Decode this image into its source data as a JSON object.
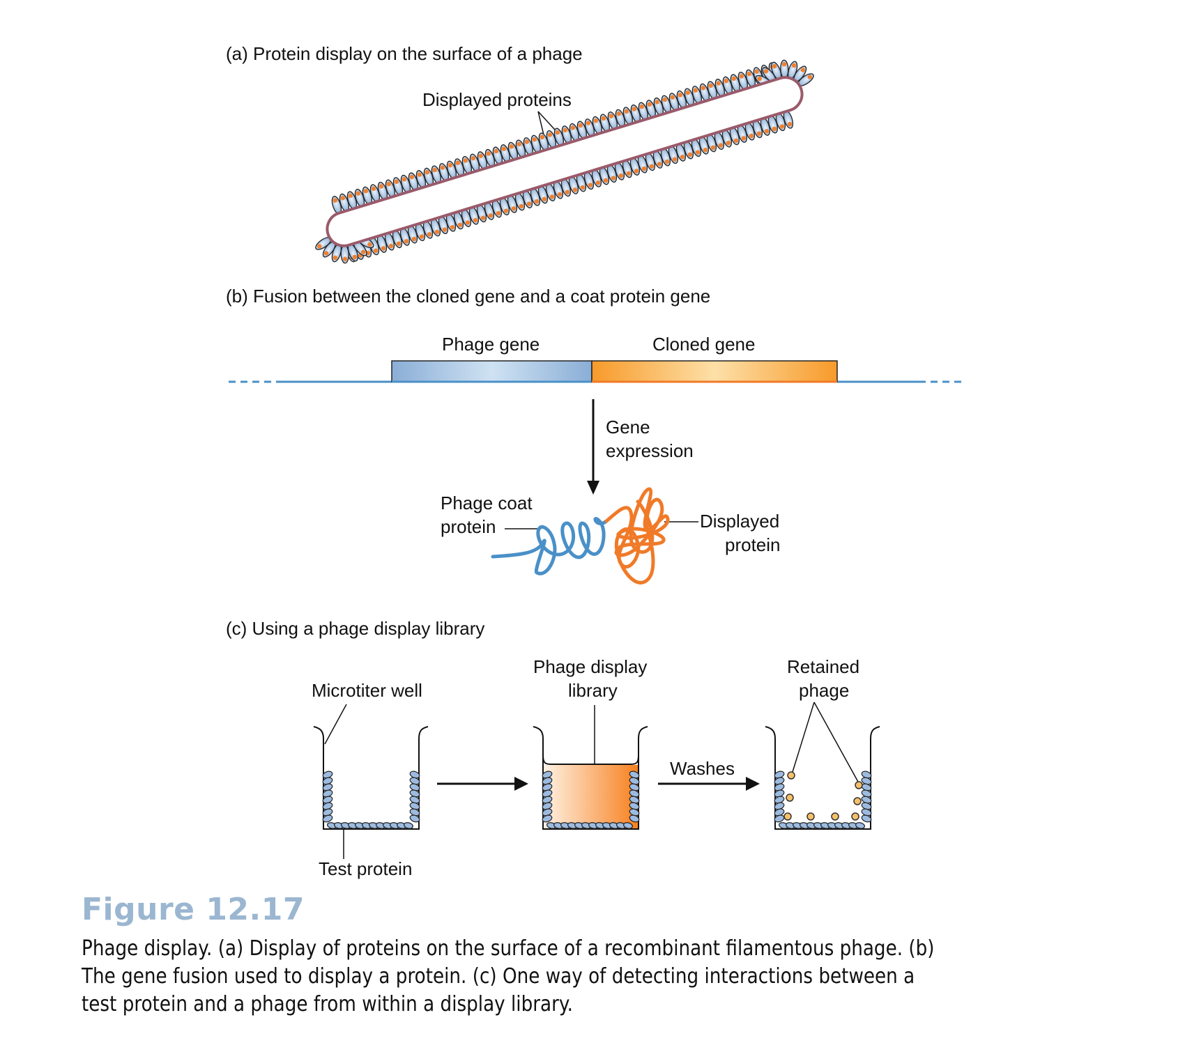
{
  "panel_a": {
    "title": "(a) Protein display on the surface of a phage",
    "label_displayed_proteins": "Displayed proteins"
  },
  "panel_b": {
    "title": "(b) Fusion between the cloned gene and a coat protein gene",
    "label_phage_gene": "Phage gene",
    "label_cloned_gene": "Cloned gene",
    "label_gene_expression_1": "Gene",
    "label_gene_expression_2": "expression",
    "label_coat_1": "Phage coat",
    "label_coat_2": "protein",
    "label_displayed_1": "Displayed",
    "label_displayed_2": "protein"
  },
  "panel_c": {
    "title": "(c) Using a phage display library",
    "label_microtiter_well": "Microtiter well",
    "label_library_1": "Phage display",
    "label_library_2": "library",
    "label_retained_1": "Retained",
    "label_retained_2": "phage",
    "label_washes": "Washes",
    "label_test_protein": "Test protein"
  },
  "figure_label": "Figure 12.17",
  "caption": "Phage display. (a) Display of proteins on the surface of a recombinant filamentous phage. (b) The gene fusion used to display a protein. (c) One way of detecting interactions between a test protein and a phage from within a display library.",
  "colors": {
    "coat_blue": "#4a90c8",
    "display_orange": "#f07a28",
    "figure_label": "#9bb6d0",
    "phage_bead_orange": "#f08030",
    "retained_phage_yellow": "#f5c06a"
  }
}
